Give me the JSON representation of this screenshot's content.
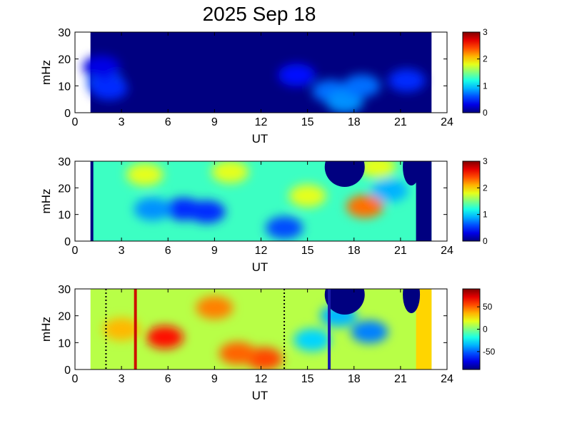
{
  "chart_data": [
    {
      "type": "heatmap",
      "title": "2025 Sep 18",
      "xlabel": "UT",
      "ylabel": "mHz",
      "xlim": [
        0,
        24
      ],
      "ylim": [
        0,
        30
      ],
      "xticks": [
        "0",
        "3",
        "6",
        "9",
        "12",
        "15",
        "18",
        "21",
        "24"
      ],
      "yticks": [
        "0",
        "10",
        "20",
        "30"
      ],
      "data_xrange": [
        1,
        23
      ],
      "colormap": "jet",
      "colorbar": {
        "range": [
          0,
          3
        ],
        "ticks": [
          "0",
          "1",
          "2",
          "3"
        ]
      },
      "features": [
        {
          "x": 2.0,
          "y": 11,
          "value": 0.6
        },
        {
          "x": 2.2,
          "y": 9,
          "value": 0.5
        },
        {
          "x": 1.7,
          "y": 17,
          "value": 0.3
        },
        {
          "x": 14.3,
          "y": 14,
          "value": 0.4
        },
        {
          "x": 16.5,
          "y": 8,
          "value": 0.7
        },
        {
          "x": 17.4,
          "y": 4,
          "value": 0.8
        },
        {
          "x": 18.5,
          "y": 10,
          "value": 0.7
        },
        {
          "x": 21.4,
          "y": 12,
          "value": 0.5
        }
      ]
    },
    {
      "type": "heatmap",
      "xlabel": "UT",
      "ylabel": "mHz",
      "xlim": [
        0,
        24
      ],
      "ylim": [
        0,
        30
      ],
      "xticks": [
        "0",
        "3",
        "6",
        "9",
        "12",
        "15",
        "18",
        "21",
        "24"
      ],
      "yticks": [
        "0",
        "10",
        "20",
        "30"
      ],
      "data_xrange": [
        1,
        23
      ],
      "colormap": "jet",
      "colorbar": {
        "range": [
          0,
          3
        ],
        "ticks": [
          "0",
          "1",
          "2",
          "3"
        ]
      },
      "background_value": 1.3,
      "features": [
        {
          "x": 7.0,
          "y": 12,
          "value": 0.5
        },
        {
          "x": 8.5,
          "y": 11,
          "value": 0.5
        },
        {
          "x": 5.0,
          "y": 12,
          "value": 0.8
        },
        {
          "x": 13.5,
          "y": 5,
          "value": 0.6
        },
        {
          "x": 4.5,
          "y": 25,
          "value": 1.8
        },
        {
          "x": 10.0,
          "y": 26,
          "value": 1.8
        },
        {
          "x": 15.0,
          "y": 17,
          "value": 1.8
        },
        {
          "x": 18.7,
          "y": 13,
          "value": 2.3
        },
        {
          "x": 19.5,
          "y": 28,
          "value": 1.8
        },
        {
          "x": 20.3,
          "y": 19,
          "value": 0.9
        }
      ]
    },
    {
      "type": "heatmap",
      "xlabel": "UT",
      "ylabel": "mHz",
      "xlim": [
        0,
        24
      ],
      "ylim": [
        0,
        30
      ],
      "xticks": [
        "0",
        "3",
        "6",
        "9",
        "12",
        "15",
        "18",
        "21",
        "24"
      ],
      "yticks": [
        "0",
        "10",
        "20",
        "30"
      ],
      "data_xrange": [
        1,
        23
      ],
      "colormap": "jet",
      "colorbar": {
        "range": [
          -90,
          90
        ],
        "ticks": [
          "50",
          "0",
          "-50"
        ]
      },
      "vertical_lines": [
        {
          "x": 2.0,
          "style": "dotted",
          "color": "#000000"
        },
        {
          "x": 3.9,
          "style": "solid",
          "color": "#cc1100"
        },
        {
          "x": 13.5,
          "style": "dotted",
          "color": "#000000"
        },
        {
          "x": 16.4,
          "style": "solid",
          "color": "#1a1aaa"
        }
      ],
      "features": [
        {
          "x": 5.8,
          "y": 12,
          "value": 65
        },
        {
          "x": 12.2,
          "y": 4,
          "value": 55
        },
        {
          "x": 10.5,
          "y": 6,
          "value": 50
        },
        {
          "x": 9.0,
          "y": 23,
          "value": 45
        },
        {
          "x": 3.0,
          "y": 15,
          "value": 35
        },
        {
          "x": 15.3,
          "y": 11,
          "value": -30
        },
        {
          "x": 19.0,
          "y": 14,
          "value": -45
        },
        {
          "x": 17.0,
          "y": 20,
          "value": -35
        }
      ]
    }
  ]
}
